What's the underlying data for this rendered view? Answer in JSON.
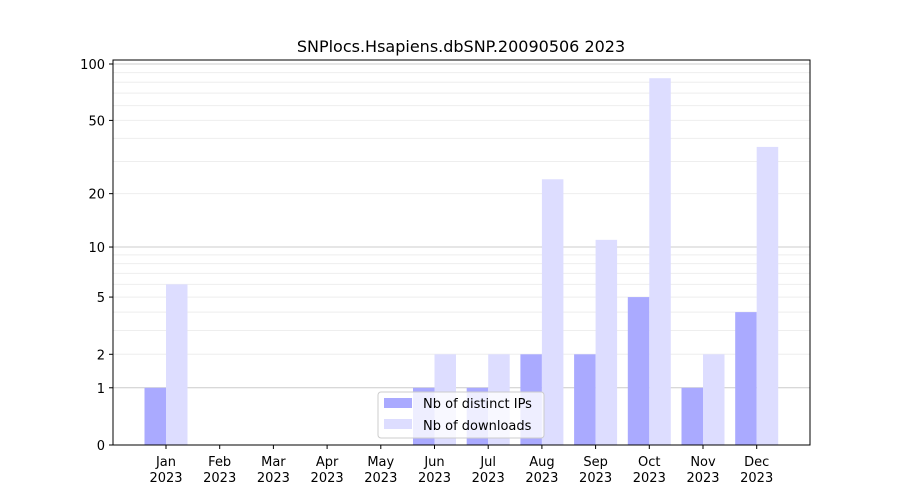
{
  "chart_data": {
    "type": "bar",
    "title": "SNPlocs.Hsapiens.dbSNP.20090506 2023",
    "xlabel": "",
    "ylabel": "",
    "yscale": "log(1+y)",
    "ylim": [
      0,
      105
    ],
    "yticks": [
      0,
      1,
      2,
      5,
      10,
      20,
      50,
      100
    ],
    "ytick_labels": [
      "0",
      "1",
      "2",
      "5",
      "10",
      "20",
      "50",
      "100"
    ],
    "grid": true,
    "legend_position": "bottom-center",
    "categories": [
      "Jan\n2023",
      "Feb\n2023",
      "Mar\n2023",
      "Apr\n2023",
      "May\n2023",
      "Jun\n2023",
      "Jul\n2023",
      "Aug\n2023",
      "Sep\n2023",
      "Oct\n2023",
      "Nov\n2023",
      "Dec\n2023"
    ],
    "series": [
      {
        "name": "Nb of distinct IPs",
        "color": "#aaaaff",
        "values": [
          1,
          0,
          0,
          0,
          0,
          1,
          1,
          2,
          2,
          5,
          1,
          4
        ]
      },
      {
        "name": "Nb of downloads",
        "color": "#ddddff",
        "values": [
          6,
          0,
          0,
          0,
          0,
          2,
          2,
          24,
          11,
          84,
          2,
          36
        ]
      }
    ]
  }
}
